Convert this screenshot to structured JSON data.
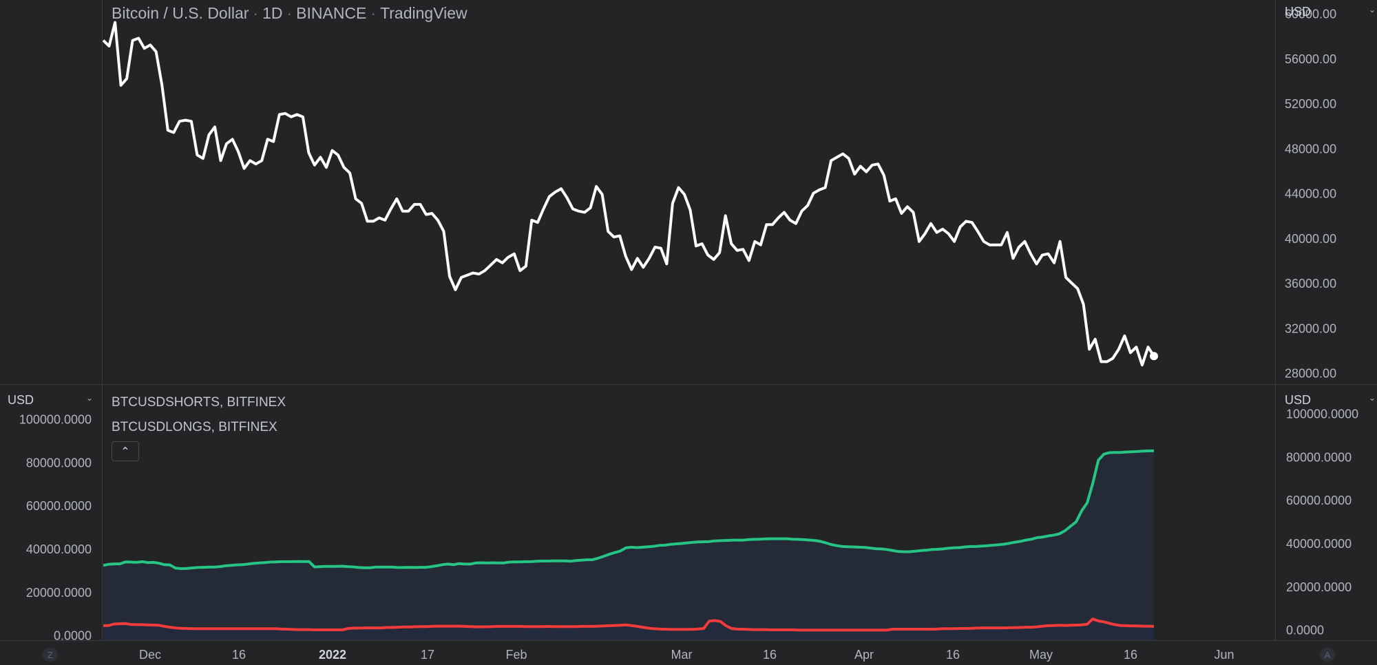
{
  "legend": {
    "symbol": "Bitcoin / U.S. Dollar",
    "interval": "1D",
    "exchange": "BINANCE",
    "source": "TradingView",
    "shorts_label": "BTCUSDSHORTS, BITFINEX",
    "longs_label": "BTCUSDLONGS, BITFINEX"
  },
  "scales": {
    "main_right_currency": "USD",
    "lower_left_currency": "USD",
    "lower_right_currency": "USD"
  },
  "badges": {
    "left": "Z",
    "right": "A"
  },
  "colors": {
    "price": "#ffffff",
    "longs": "#26c485",
    "shorts": "#f23c3c",
    "area": "#252a37"
  },
  "chart_data": [
    {
      "type": "line",
      "series": [
        {
          "name": "Bitcoin / U.S. Dollar",
          "values": [
            57600,
            57100,
            59200,
            53600,
            54200,
            57600,
            57800,
            56900,
            57200,
            56600,
            53600,
            49600,
            49400,
            50400,
            50500,
            50400,
            47400,
            47100,
            49200,
            49900,
            46900,
            48400,
            48800,
            47700,
            46200,
            46900,
            46600,
            46900,
            48800,
            48600,
            51000,
            51100,
            50800,
            51000,
            50800,
            47600,
            46500,
            47200,
            46300,
            47800,
            47400,
            46300,
            45800,
            43500,
            43100,
            41500,
            41500,
            41800,
            41600,
            42600,
            43500,
            42400,
            42400,
            43000,
            43000,
            42100,
            42200,
            41600,
            40600,
            36600,
            35400,
            36500,
            36700,
            36900,
            36800,
            37100,
            37600,
            38100,
            37800,
            38300,
            38600,
            37100,
            37500,
            41600,
            41400,
            42600,
            43700,
            44100,
            44400,
            43600,
            42600,
            42400,
            42300,
            42700,
            44600,
            43900,
            40600,
            40100,
            40200,
            38400,
            37200,
            38200,
            37400,
            38200,
            39200,
            39100,
            37700,
            43100,
            44500,
            43900,
            42500,
            39300,
            39500,
            38500,
            38100,
            38700,
            42000,
            39500,
            38900,
            39000,
            38000,
            39700,
            39400,
            41200,
            41200,
            41800,
            42300,
            41600,
            41300,
            42400,
            42900,
            44000,
            44300,
            44500,
            46900,
            47200,
            47500,
            47100,
            45700,
            46400,
            45900,
            46500,
            46600,
            45600,
            43300,
            43500,
            42200,
            42800,
            42300,
            39700,
            40400,
            41300,
            40500,
            40800,
            40400,
            39700,
            41000,
            41500,
            41400,
            40600,
            39700,
            39400,
            39400,
            39400,
            40500,
            38200,
            39200,
            39700,
            38600,
            37700,
            38500,
            38600,
            37800,
            39700,
            36500,
            36000,
            35500,
            34100,
            30100,
            31000,
            29000,
            29000,
            29300,
            30100,
            31300,
            29800,
            30300,
            28700,
            30300,
            29500
          ]
        }
      ],
      "x_ticks": [
        "Dec",
        "16",
        "2022",
        "17",
        "Feb",
        "Mar",
        "16",
        "Apr",
        "16",
        "May",
        "16",
        "Jun"
      ],
      "y_ticks": [
        28000,
        32000,
        36000,
        40000,
        44000,
        48000,
        52000,
        56000,
        60000
      ],
      "y_tick_labels": [
        "28000.00",
        "32000.00",
        "36000.00",
        "40000.00",
        "44000.00",
        "48000.00",
        "52000.00",
        "56000.00",
        "60000.00"
      ],
      "ylim": [
        27000,
        61200
      ],
      "grid": false
    },
    {
      "type": "area",
      "series": [
        {
          "name": "BTCUSDLONGS, BITFINEX",
          "values": [
            32600,
            33100,
            33300,
            33300,
            34200,
            34100,
            34000,
            34300,
            33900,
            34000,
            33600,
            32900,
            32800,
            31300,
            31100,
            31200,
            31400,
            31600,
            31700,
            31800,
            31800,
            32000,
            32400,
            32600,
            32800,
            32900,
            33200,
            33500,
            33700,
            33900,
            34100,
            34200,
            34300,
            34300,
            34300,
            34400,
            34300,
            34400,
            31900,
            32000,
            32100,
            32100,
            32100,
            32200,
            32000,
            31900,
            31600,
            31500,
            31500,
            31800,
            31800,
            31800,
            31800,
            31600,
            31600,
            31700,
            31600,
            31700,
            31700,
            32000,
            32400,
            32900,
            33200,
            32900,
            33400,
            33200,
            33200,
            33700,
            33800,
            33700,
            33800,
            33700,
            33700,
            34100,
            34200,
            34200,
            34300,
            34300,
            34500,
            34600,
            34600,
            34700,
            34700,
            34700,
            34500,
            34800,
            35000,
            35200,
            35200,
            35900,
            36800,
            37700,
            38500,
            39200,
            40700,
            41000,
            40800,
            41000,
            41200,
            41400,
            41800,
            41900,
            42300,
            42500,
            42700,
            43000,
            43200,
            43400,
            43500,
            43600,
            43900,
            44000,
            44100,
            44200,
            44300,
            44200,
            44500,
            44600,
            44700,
            44800,
            44900,
            44900,
            44900,
            44900,
            44700,
            44600,
            44500,
            44300,
            44100,
            43700,
            43000,
            42200,
            41700,
            41300,
            41200,
            41100,
            41000,
            40900,
            40600,
            40300,
            40200,
            39900,
            39500,
            39000,
            38900,
            38900,
            39100,
            39400,
            39600,
            39900,
            40000,
            40200,
            40500,
            40700,
            40800,
            41100,
            41300,
            41300,
            41500,
            41700,
            41900,
            42100,
            42400,
            42800,
            43300,
            43700,
            44300,
            44700,
            45400,
            45700,
            46200,
            46600,
            47200,
            48600,
            50700,
            52700,
            57800,
            61500,
            70500,
            81200,
            84000,
            84700,
            84800,
            84800,
            85000,
            85100,
            85200,
            85400,
            85500,
            85600
          ]
        },
        {
          "name": "BTCUSDSHORTS, BITFINEX",
          "values": [
            4700,
            4800,
            5500,
            5600,
            5700,
            5300,
            5200,
            5200,
            5100,
            5000,
            4900,
            4400,
            4000,
            3700,
            3500,
            3400,
            3300,
            3300,
            3300,
            3300,
            3300,
            3300,
            3300,
            3300,
            3300,
            3300,
            3300,
            3300,
            3300,
            3300,
            3300,
            3300,
            3200,
            3100,
            3000,
            2900,
            2900,
            2900,
            2800,
            2800,
            2800,
            2800,
            2800,
            2800,
            3400,
            3600,
            3600,
            3700,
            3700,
            3700,
            3700,
            3900,
            3900,
            4000,
            4100,
            4100,
            4200,
            4300,
            4300,
            4400,
            4500,
            4500,
            4500,
            4500,
            4500,
            4400,
            4300,
            4200,
            4200,
            4200,
            4300,
            4400,
            4400,
            4400,
            4400,
            4400,
            4300,
            4300,
            4300,
            4300,
            4400,
            4300,
            4300,
            4300,
            4300,
            4300,
            4400,
            4400,
            4400,
            4500,
            4600,
            4700,
            4800,
            4900,
            5100,
            4800,
            4400,
            4000,
            3600,
            3300,
            3200,
            3100,
            3000,
            3000,
            3000,
            3000,
            3000,
            3200,
            3400,
            6800,
            7100,
            6700,
            4700,
            3400,
            3200,
            3100,
            3000,
            2900,
            2900,
            2900,
            2800,
            2800,
            2800,
            2800,
            2800,
            2700,
            2700,
            2700,
            2700,
            2700,
            2700,
            2700,
            2700,
            2700,
            2700,
            2700,
            2700,
            2700,
            2700,
            2700,
            2700,
            2700,
            3100,
            3100,
            3100,
            3100,
            3100,
            3100,
            3100,
            3100,
            3200,
            3300,
            3300,
            3300,
            3400,
            3400,
            3500,
            3600,
            3700,
            3700,
            3700,
            3700,
            3700,
            3800,
            3800,
            3900,
            4000,
            4000,
            4200,
            4500,
            4700,
            4800,
            4900,
            4800,
            4900,
            5000,
            5100,
            5400,
            7800,
            6900,
            6500,
            5800,
            5200,
            4800,
            4700,
            4600,
            4600,
            4500,
            4500,
            4400
          ]
        }
      ],
      "y_ticks": [
        0,
        20000,
        40000,
        60000,
        80000,
        100000
      ],
      "y_tick_labels": [
        "0.0000",
        "20000.0000",
        "40000.0000",
        "60000.0000",
        "80000.0000",
        "100000.0000"
      ],
      "ylim": [
        -2000,
        103000
      ],
      "grid": false
    }
  ]
}
